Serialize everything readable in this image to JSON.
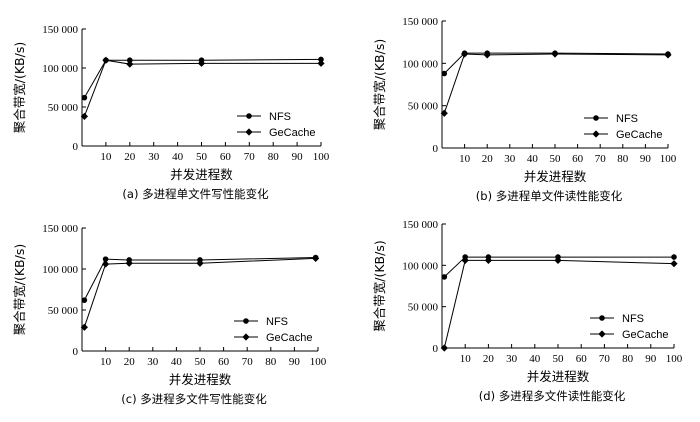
{
  "chart_data": [
    {
      "type": "line",
      "caption": "(a)  多进程单文件写性能变化",
      "xlabel": "并发进程数",
      "ylabel": "聚合带宽/(KB/s)",
      "xlim": [
        0,
        100
      ],
      "ylim": [
        0,
        150000
      ],
      "xticks": [
        "10",
        "20",
        "30",
        "40",
        "50",
        "60",
        "70",
        "80",
        "90",
        "100"
      ],
      "yticks": [
        "0",
        "50 000",
        "100 000",
        "150 000"
      ],
      "legend_position": "lower-right",
      "series": [
        {
          "name": "NFS",
          "x": [
            1,
            10,
            20,
            50,
            100
          ],
          "y": [
            62000,
            110000,
            110000,
            110000,
            111000
          ]
        },
        {
          "name": "GeCache",
          "x": [
            1,
            10,
            20,
            50,
            100
          ],
          "y": [
            38000,
            110000,
            105000,
            106000,
            106000
          ]
        }
      ]
    },
    {
      "type": "line",
      "caption": "(b)  多进程单文件读性能变化",
      "xlabel": "并发进程数",
      "ylabel": "聚合带宽/(KB/s)",
      "xlim": [
        0,
        100
      ],
      "ylim": [
        0,
        150000
      ],
      "xticks": [
        "10",
        "20",
        "30",
        "40",
        "50",
        "60",
        "70",
        "80",
        "90",
        "100"
      ],
      "yticks": [
        "0",
        "50 000",
        "100 000",
        "150 000"
      ],
      "legend_position": "lower-right",
      "series": [
        {
          "name": "NFS",
          "x": [
            1,
            10,
            20,
            50,
            100
          ],
          "y": [
            88000,
            112000,
            112000,
            112000,
            111000
          ]
        },
        {
          "name": "GeCache",
          "x": [
            1,
            10,
            20,
            50,
            100
          ],
          "y": [
            41000,
            111000,
            110000,
            111000,
            110000
          ]
        }
      ]
    },
    {
      "type": "line",
      "caption": "(c)  多进程多文件写性能变化",
      "xlabel": "并发进程数",
      "ylabel": "聚合带宽/(KB/s)",
      "xlim": [
        0,
        100
      ],
      "ylim": [
        0,
        150000
      ],
      "xticks": [
        "10",
        "20",
        "30",
        "40",
        "50",
        "60",
        "70",
        "80",
        "90",
        "100"
      ],
      "yticks": [
        "0",
        "50 000",
        "100 000",
        "150 000"
      ],
      "legend_position": "lower-right",
      "series": [
        {
          "name": "NFS",
          "x": [
            1,
            10,
            20,
            50,
            99
          ],
          "y": [
            62000,
            112000,
            111000,
            111000,
            114000
          ]
        },
        {
          "name": "GeCache",
          "x": [
            1,
            10,
            20,
            50,
            99
          ],
          "y": [
            29000,
            106000,
            107000,
            107000,
            113000
          ]
        }
      ]
    },
    {
      "type": "line",
      "caption": "(d)  多进程多文件读性能变化",
      "xlabel": "并发进程数",
      "ylabel": "聚合带宽/(KB/s)",
      "xlim": [
        0,
        100
      ],
      "ylim": [
        0,
        150000
      ],
      "xticks": [
        "10",
        "20",
        "30",
        "40",
        "50",
        "60",
        "70",
        "80",
        "90",
        "100"
      ],
      "yticks": [
        "0",
        "50 000",
        "100 000",
        "150 000"
      ],
      "legend_position": "lower-right",
      "series": [
        {
          "name": "NFS",
          "x": [
            1,
            10,
            20,
            50,
            100
          ],
          "y": [
            86000,
            110000,
            110000,
            110000,
            110000
          ]
        },
        {
          "name": "GeCache",
          "x": [
            1,
            10,
            20,
            50,
            100
          ],
          "y": [
            0,
            106000,
            106000,
            106000,
            102000
          ]
        }
      ]
    }
  ]
}
